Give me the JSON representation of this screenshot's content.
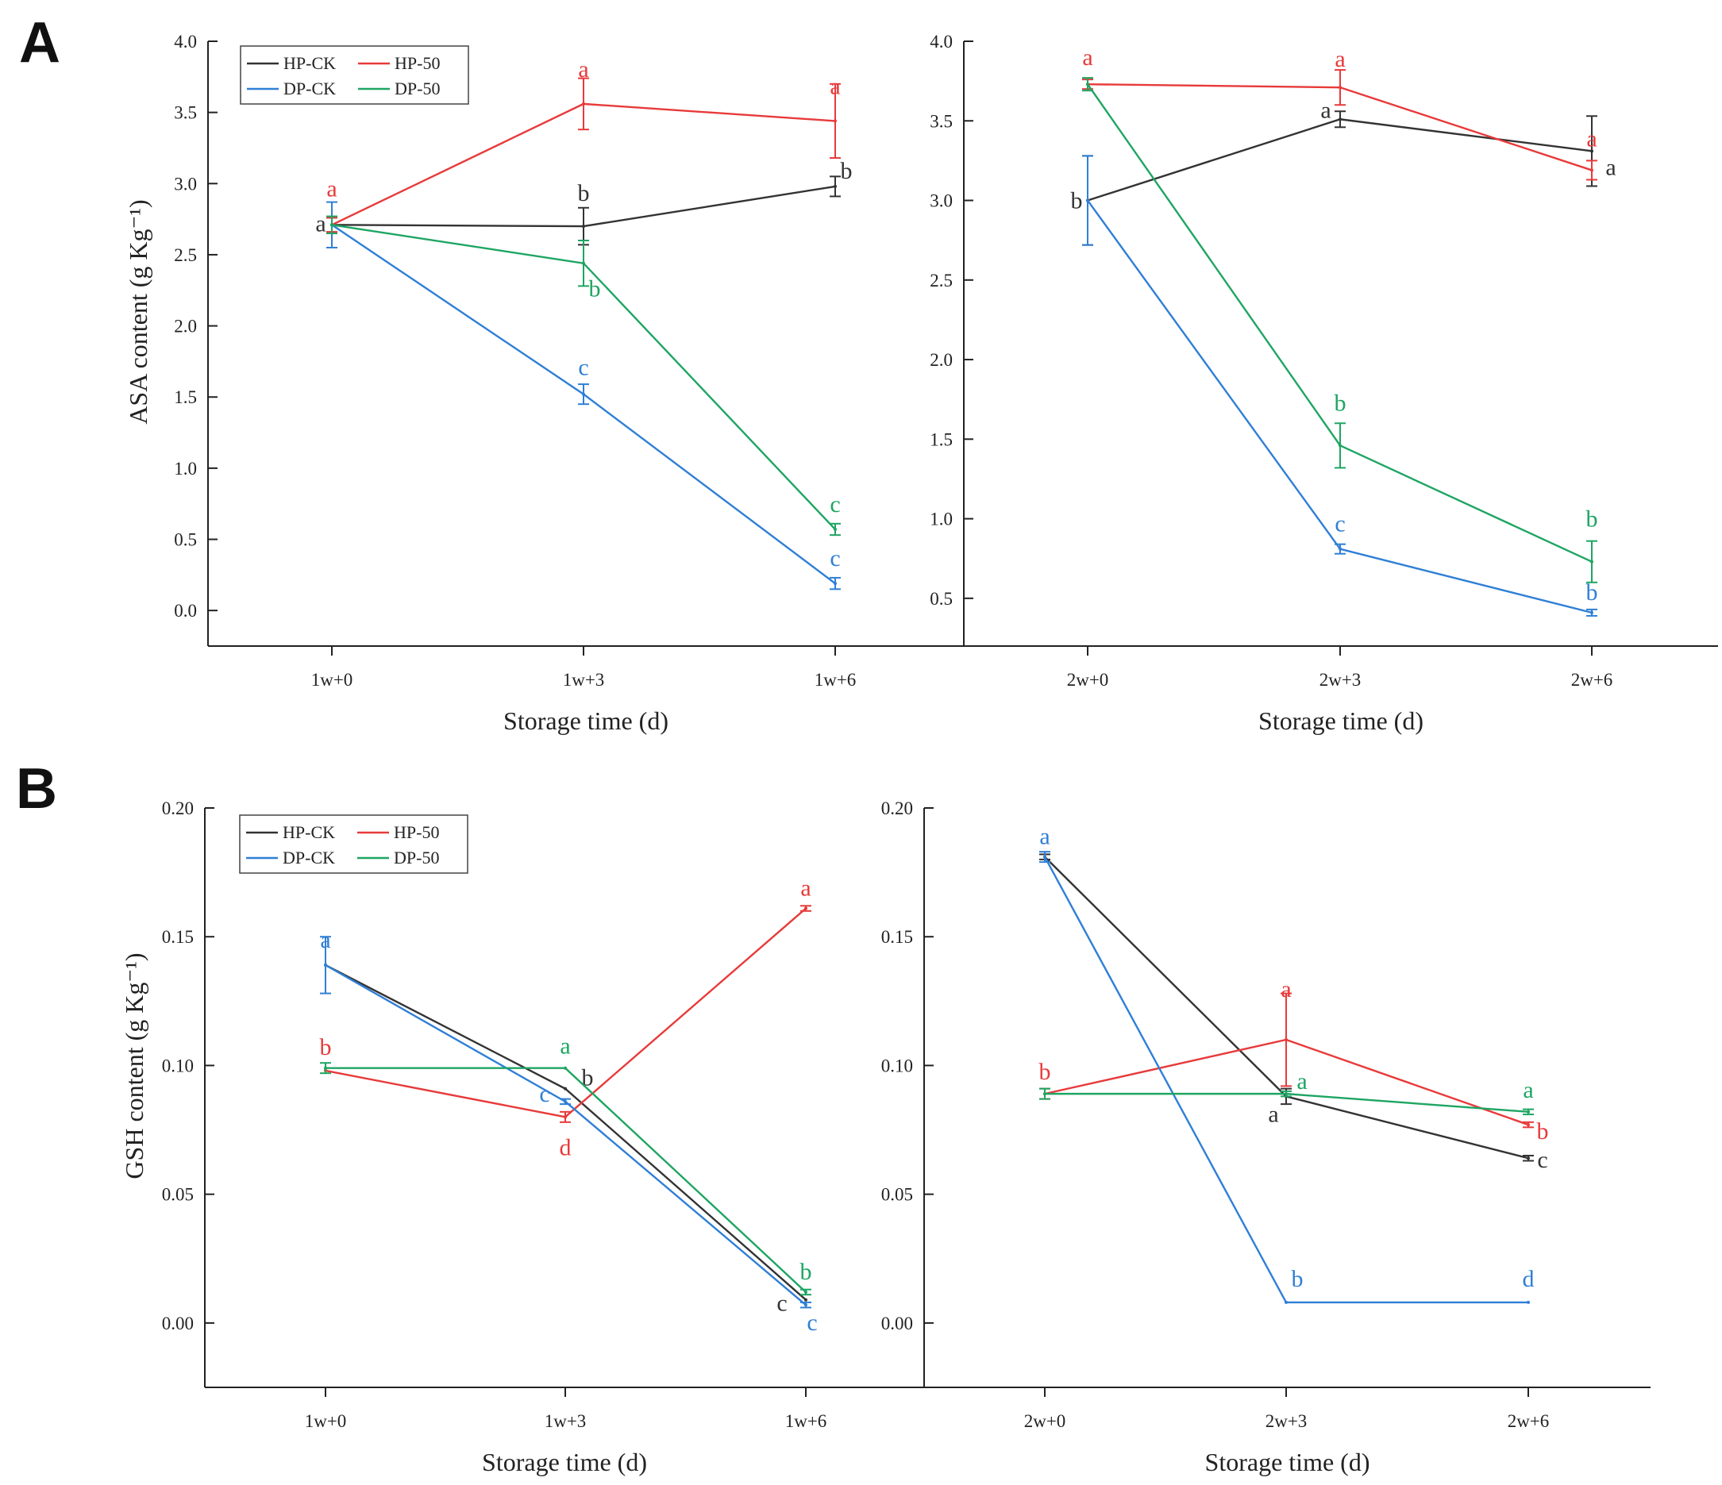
{
  "panel_labels": [
    "A",
    "B"
  ],
  "chart_data": [
    {
      "type": "line",
      "panel": "A",
      "title": "",
      "xlabel": "Storage time (d)",
      "ylabel": "ASA content (g Kg⁻¹)",
      "ylim": [
        -0.25,
        4.0
      ],
      "yticks": [
        "0.0",
        "0.5",
        "1.0",
        "1.5",
        "2.0",
        "2.5",
        "3.0",
        "3.5",
        "4.0"
      ],
      "ytick_values": [
        0,
        0.5,
        1,
        1.5,
        2,
        2.5,
        3,
        3.5,
        4
      ],
      "categories": [
        "1w+0",
        "1w+3",
        "1w+6"
      ],
      "legend": [
        "HP-CK",
        "HP-50",
        "DP-CK",
        "DP-50"
      ],
      "legend_position": "top-left",
      "series": [
        {
          "name": "HP-CK",
          "color": "#333333",
          "values": [
            2.71,
            2.7,
            2.98
          ],
          "errors": [
            0.05,
            0.13,
            0.07
          ],
          "labels": [
            "a",
            "b",
            "b"
          ]
        },
        {
          "name": "HP-50",
          "color": "#e83a3a",
          "values": [
            2.71,
            3.56,
            3.44
          ],
          "errors": [
            0.05,
            0.18,
            0.26
          ],
          "labels": [
            "a",
            "a",
            "a"
          ]
        },
        {
          "name": "DP-CK",
          "color": "#2f7fd6",
          "values": [
            2.71,
            1.52,
            0.19
          ],
          "errors": [
            0.16,
            0.07,
            0.04
          ],
          "labels": [
            "a",
            "c",
            "c"
          ]
        },
        {
          "name": "DP-50",
          "color": "#1ea562",
          "values": [
            2.71,
            2.44,
            0.57
          ],
          "errors": [
            0.06,
            0.16,
            0.04
          ],
          "labels": [
            "a",
            "b",
            "c"
          ]
        }
      ]
    },
    {
      "type": "line",
      "panel": "A",
      "title": "",
      "xlabel": "Storage time (d)",
      "ylabel": "",
      "ylim": [
        0.2,
        4.0
      ],
      "yticks": [
        "0.5",
        "1.0",
        "1.5",
        "2.0",
        "2.5",
        "3.0",
        "3.5",
        "4.0"
      ],
      "ytick_values": [
        0.5,
        1,
        1.5,
        2,
        2.5,
        3,
        3.5,
        4
      ],
      "categories": [
        "2w+0",
        "2w+3",
        "2w+6"
      ],
      "series": [
        {
          "name": "HP-CK",
          "color": "#333333",
          "values": [
            3.0,
            3.51,
            3.31
          ],
          "errors": [
            0.28,
            0.05,
            0.22
          ],
          "labels": [
            "b",
            "a",
            "a"
          ]
        },
        {
          "name": "HP-50",
          "color": "#e83a3a",
          "values": [
            3.73,
            3.71,
            3.19
          ],
          "errors": [
            0.03,
            0.11,
            0.06
          ],
          "labels": [
            "a",
            "a",
            "a"
          ]
        },
        {
          "name": "DP-CK",
          "color": "#2f7fd6",
          "values": [
            3.0,
            0.81,
            0.41
          ],
          "errors": [
            0.28,
            0.03,
            0.02
          ],
          "labels": [
            "b",
            "c",
            "b"
          ]
        },
        {
          "name": "DP-50",
          "color": "#1ea562",
          "values": [
            3.73,
            1.46,
            0.73
          ],
          "errors": [
            0.04,
            0.14,
            0.13
          ],
          "labels": [
            "a",
            "b",
            "b"
          ]
        }
      ]
    },
    {
      "type": "line",
      "panel": "B",
      "title": "",
      "xlabel": "Storage time (d)",
      "ylabel": "GSH content (g Kg⁻¹)",
      "ylim": [
        -0.025,
        0.2
      ],
      "yticks": [
        "0.00",
        "0.05",
        "0.10",
        "0.15",
        "0.20"
      ],
      "ytick_values": [
        0,
        0.05,
        0.1,
        0.15,
        0.2
      ],
      "categories": [
        "1w+0",
        "1w+3",
        "1w+6"
      ],
      "legend": [
        "HP-CK",
        "HP-50",
        "DP-CK",
        "DP-50"
      ],
      "legend_position": "top-left",
      "series": [
        {
          "name": "HP-CK",
          "color": "#333333",
          "values": [
            0.139,
            0.091,
            0.009
          ],
          "errors": [
            0.0,
            0.0,
            0.0
          ],
          "labels": [
            "a",
            "b",
            "c"
          ]
        },
        {
          "name": "HP-50",
          "color": "#e83a3a",
          "values": [
            0.098,
            0.08,
            0.161
          ],
          "errors": [
            0.0,
            0.002,
            0.001
          ],
          "labels": [
            "b",
            "d",
            "a"
          ]
        },
        {
          "name": "DP-CK",
          "color": "#2f7fd6",
          "values": [
            0.139,
            0.086,
            0.007
          ],
          "errors": [
            0.011,
            0.001,
            0.001
          ],
          "labels": [
            "a",
            "c",
            "c"
          ]
        },
        {
          "name": "DP-50",
          "color": "#1ea562",
          "values": [
            0.099,
            0.099,
            0.012
          ],
          "errors": [
            0.002,
            0.0,
            0.001
          ],
          "labels": [
            "b",
            "a",
            "b"
          ]
        }
      ]
    },
    {
      "type": "line",
      "panel": "B",
      "title": "",
      "xlabel": "Storage time (d)",
      "ylabel": "",
      "ylim": [
        -0.025,
        0.2
      ],
      "yticks": [
        "0.00",
        "0.05",
        "0.10",
        "0.15",
        "0.20"
      ],
      "ytick_values": [
        0,
        0.05,
        0.1,
        0.15,
        0.2
      ],
      "categories": [
        "2w+0",
        "2w+3",
        "2w+6"
      ],
      "series": [
        {
          "name": "HP-CK",
          "color": "#333333",
          "values": [
            0.181,
            0.088,
            0.064
          ],
          "errors": [
            0.001,
            0.003,
            0.001
          ],
          "labels": [
            "a",
            "a",
            "c"
          ]
        },
        {
          "name": "HP-50",
          "color": "#e83a3a",
          "values": [
            0.089,
            0.11,
            0.077
          ],
          "errors": [
            0.002,
            0.018,
            0.001
          ],
          "labels": [
            "b",
            "a",
            "b"
          ]
        },
        {
          "name": "DP-CK",
          "color": "#2f7fd6",
          "values": [
            0.181,
            0.008,
            0.008
          ],
          "errors": [
            0.002,
            0.0,
            0.0
          ],
          "labels": [
            "a",
            "b",
            "d"
          ]
        },
        {
          "name": "DP-50",
          "color": "#1ea562",
          "values": [
            0.089,
            0.089,
            0.082
          ],
          "errors": [
            0.002,
            0.001,
            0.001
          ],
          "labels": [
            "b",
            "a",
            "a"
          ]
        }
      ]
    }
  ]
}
